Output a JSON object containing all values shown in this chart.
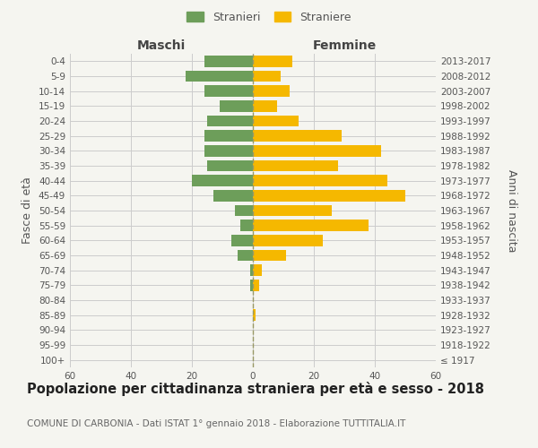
{
  "age_groups": [
    "100+",
    "95-99",
    "90-94",
    "85-89",
    "80-84",
    "75-79",
    "70-74",
    "65-69",
    "60-64",
    "55-59",
    "50-54",
    "45-49",
    "40-44",
    "35-39",
    "30-34",
    "25-29",
    "20-24",
    "15-19",
    "10-14",
    "5-9",
    "0-4"
  ],
  "birth_years": [
    "≤ 1917",
    "1918-1922",
    "1923-1927",
    "1928-1932",
    "1933-1937",
    "1938-1942",
    "1943-1947",
    "1948-1952",
    "1953-1957",
    "1958-1962",
    "1963-1967",
    "1968-1972",
    "1973-1977",
    "1978-1982",
    "1983-1987",
    "1988-1992",
    "1993-1997",
    "1998-2002",
    "2003-2007",
    "2008-2012",
    "2013-2017"
  ],
  "maschi": [
    0,
    0,
    0,
    0,
    0,
    1,
    1,
    5,
    7,
    4,
    6,
    13,
    20,
    15,
    16,
    16,
    15,
    11,
    16,
    22,
    16
  ],
  "femmine": [
    0,
    0,
    0,
    1,
    0,
    2,
    3,
    11,
    23,
    38,
    26,
    50,
    44,
    28,
    42,
    29,
    15,
    8,
    12,
    9,
    13
  ],
  "maschi_color": "#6d9e5a",
  "femmine_color": "#f5b800",
  "background_color": "#f5f5f0",
  "grid_color": "#cccccc",
  "title": "Popolazione per cittadinanza straniera per età e sesso - 2018",
  "subtitle": "COMUNE DI CARBONIA - Dati ISTAT 1° gennaio 2018 - Elaborazione TUTTITALIA.IT",
  "xlabel_left": "Maschi",
  "xlabel_right": "Femmine",
  "ylabel_left": "Fasce di età",
  "ylabel_right": "Anni di nascita",
  "legend_stranieri": "Stranieri",
  "legend_straniere": "Straniere",
  "xlim": 60,
  "title_fontsize": 10.5,
  "subtitle_fontsize": 7.5,
  "tick_fontsize": 7.5,
  "label_fontsize": 9
}
